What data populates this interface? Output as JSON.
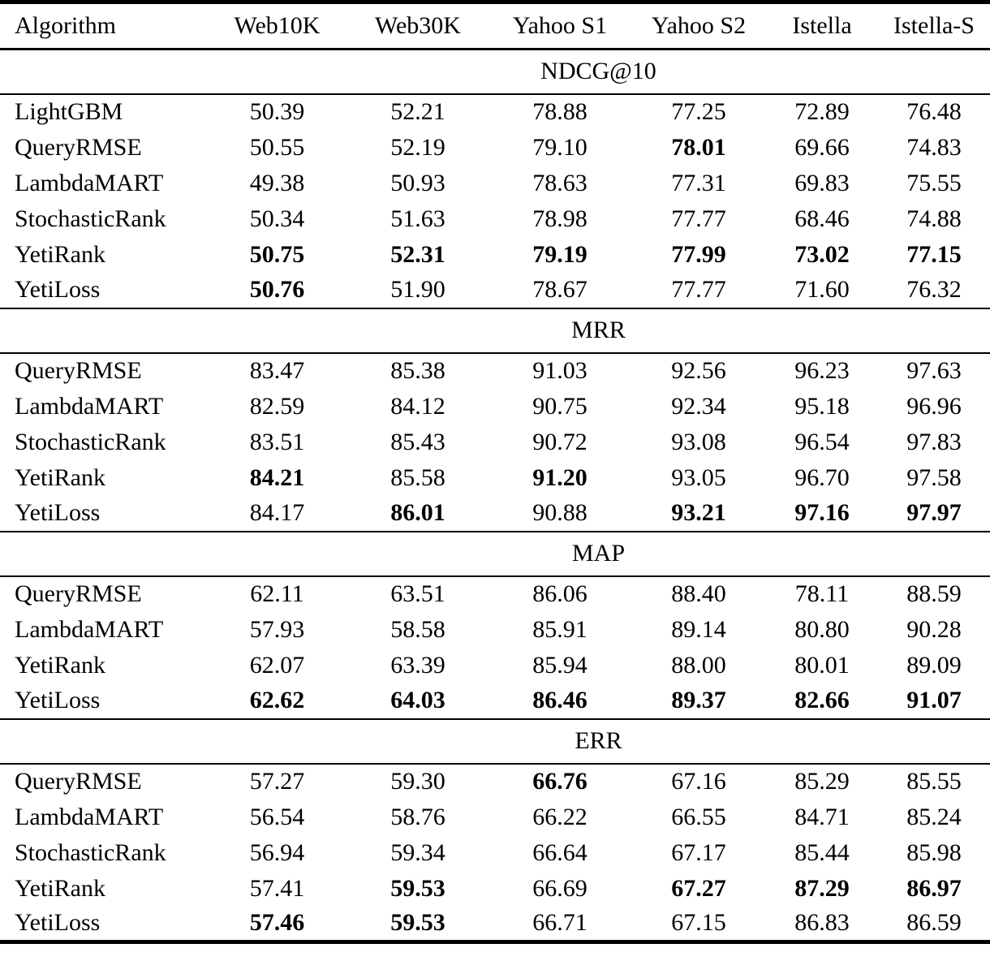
{
  "page": {
    "background": "#ffffff",
    "text_color": "#000000"
  },
  "table": {
    "columns": [
      "Algorithm",
      "Web10K",
      "Web30K",
      "Yahoo S1",
      "Yahoo S2",
      "Istella",
      "Istella-S"
    ],
    "sections": [
      {
        "title": "NDCG@10",
        "rows": [
          {
            "algorithm": "LightGBM",
            "values": [
              "50.39",
              "52.21",
              "78.88",
              "77.25",
              "72.89",
              "76.48"
            ],
            "bold": [
              0,
              0,
              0,
              0,
              0,
              0
            ]
          },
          {
            "algorithm": "QueryRMSE",
            "values": [
              "50.55",
              "52.19",
              "79.10",
              "78.01",
              "69.66",
              "74.83"
            ],
            "bold": [
              0,
              0,
              0,
              1,
              0,
              0
            ]
          },
          {
            "algorithm": "LambdaMART",
            "values": [
              "49.38",
              "50.93",
              "78.63",
              "77.31",
              "69.83",
              "75.55"
            ],
            "bold": [
              0,
              0,
              0,
              0,
              0,
              0
            ]
          },
          {
            "algorithm": "StochasticRank",
            "values": [
              "50.34",
              "51.63",
              "78.98",
              "77.77",
              "68.46",
              "74.88"
            ],
            "bold": [
              0,
              0,
              0,
              0,
              0,
              0
            ]
          },
          {
            "algorithm": "YetiRank",
            "values": [
              "50.75",
              "52.31",
              "79.19",
              "77.99",
              "73.02",
              "77.15"
            ],
            "bold": [
              1,
              1,
              1,
              1,
              1,
              1
            ]
          },
          {
            "algorithm": "YetiLoss",
            "values": [
              "50.76",
              "51.90",
              "78.67",
              "77.77",
              "71.60",
              "76.32"
            ],
            "bold": [
              1,
              0,
              0,
              0,
              0,
              0
            ]
          }
        ]
      },
      {
        "title": "MRR",
        "rows": [
          {
            "algorithm": "QueryRMSE",
            "values": [
              "83.47",
              "85.38",
              "91.03",
              "92.56",
              "96.23",
              "97.63"
            ],
            "bold": [
              0,
              0,
              0,
              0,
              0,
              0
            ]
          },
          {
            "algorithm": "LambdaMART",
            "values": [
              "82.59",
              "84.12",
              "90.75",
              "92.34",
              "95.18",
              "96.96"
            ],
            "bold": [
              0,
              0,
              0,
              0,
              0,
              0
            ]
          },
          {
            "algorithm": "StochasticRank",
            "values": [
              "83.51",
              "85.43",
              "90.72",
              "93.08",
              "96.54",
              "97.83"
            ],
            "bold": [
              0,
              0,
              0,
              0,
              0,
              0
            ]
          },
          {
            "algorithm": "YetiRank",
            "values": [
              "84.21",
              "85.58",
              "91.20",
              "93.05",
              "96.70",
              "97.58"
            ],
            "bold": [
              1,
              0,
              1,
              0,
              0,
              0
            ]
          },
          {
            "algorithm": "YetiLoss",
            "values": [
              "84.17",
              "86.01",
              "90.88",
              "93.21",
              "97.16",
              "97.97"
            ],
            "bold": [
              0,
              1,
              0,
              1,
              1,
              1
            ]
          }
        ]
      },
      {
        "title": "MAP",
        "rows": [
          {
            "algorithm": "QueryRMSE",
            "values": [
              "62.11",
              "63.51",
              "86.06",
              "88.40",
              "78.11",
              "88.59"
            ],
            "bold": [
              0,
              0,
              0,
              0,
              0,
              0
            ]
          },
          {
            "algorithm": "LambdaMART",
            "values": [
              "57.93",
              "58.58",
              "85.91",
              "89.14",
              "80.80",
              "90.28"
            ],
            "bold": [
              0,
              0,
              0,
              0,
              0,
              0
            ]
          },
          {
            "algorithm": "YetiRank",
            "values": [
              "62.07",
              "63.39",
              "85.94",
              "88.00",
              "80.01",
              "89.09"
            ],
            "bold": [
              0,
              0,
              0,
              0,
              0,
              0
            ]
          },
          {
            "algorithm": "YetiLoss",
            "values": [
              "62.62",
              "64.03",
              "86.46",
              "89.37",
              "82.66",
              "91.07"
            ],
            "bold": [
              1,
              1,
              1,
              1,
              1,
              1
            ]
          }
        ]
      },
      {
        "title": "ERR",
        "rows": [
          {
            "algorithm": "QueryRMSE",
            "values": [
              "57.27",
              "59.30",
              "66.76",
              "67.16",
              "85.29",
              "85.55"
            ],
            "bold": [
              0,
              0,
              1,
              0,
              0,
              0
            ]
          },
          {
            "algorithm": "LambdaMART",
            "values": [
              "56.54",
              "58.76",
              "66.22",
              "66.55",
              "84.71",
              "85.24"
            ],
            "bold": [
              0,
              0,
              0,
              0,
              0,
              0
            ]
          },
          {
            "algorithm": "StochasticRank",
            "values": [
              "56.94",
              "59.34",
              "66.64",
              "67.17",
              "85.44",
              "85.98"
            ],
            "bold": [
              0,
              0,
              0,
              0,
              0,
              0
            ]
          },
          {
            "algorithm": "YetiRank",
            "values": [
              "57.41",
              "59.53",
              "66.69",
              "67.27",
              "87.29",
              "86.97"
            ],
            "bold": [
              0,
              1,
              0,
              1,
              1,
              1
            ]
          },
          {
            "algorithm": "YetiLoss",
            "values": [
              "57.46",
              "59.53",
              "66.71",
              "67.15",
              "86.83",
              "86.59"
            ],
            "bold": [
              1,
              1,
              0,
              0,
              0,
              0
            ]
          }
        ]
      }
    ]
  }
}
